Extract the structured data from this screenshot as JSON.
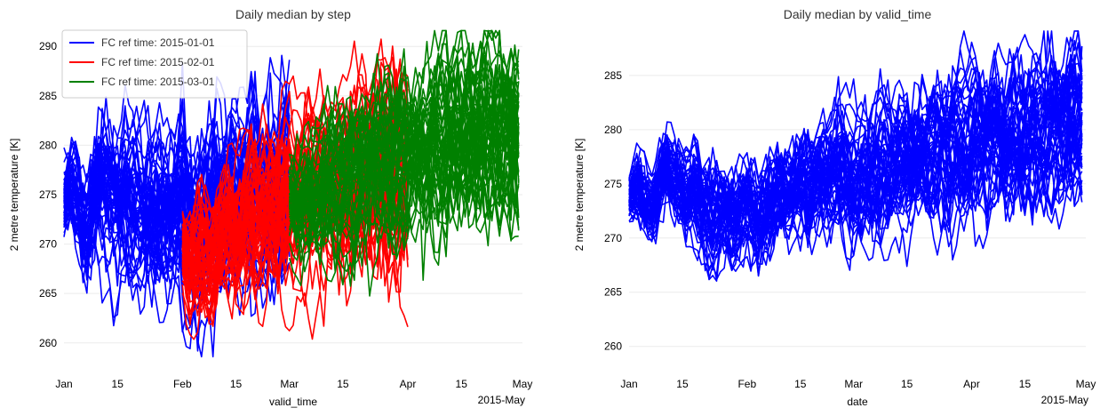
{
  "chart_data": [
    {
      "type": "line",
      "title": "Daily median by step",
      "xlabel": "valid_time",
      "ylabel": "2 metre temperature [K]",
      "x_offset_label": "2015-May",
      "xlim": [
        "2015-01-01",
        "2015-05-01"
      ],
      "ylim": [
        258,
        292
      ],
      "y_ticks": [
        260,
        265,
        270,
        275,
        280,
        285,
        290
      ],
      "x_ticks": [
        {
          "date": "2015-01-01",
          "label": "Jan"
        },
        {
          "date": "2015-01-15",
          "label": "15"
        },
        {
          "date": "2015-02-01",
          "label": "Feb"
        },
        {
          "date": "2015-02-15",
          "label": "15"
        },
        {
          "date": "2015-03-01",
          "label": "Mar"
        },
        {
          "date": "2015-03-15",
          "label": "15"
        },
        {
          "date": "2015-04-01",
          "label": "Apr"
        },
        {
          "date": "2015-04-15",
          "label": "15"
        },
        {
          "date": "2015-05-01",
          "label": "May"
        }
      ],
      "grid": "horizontal",
      "legend_position": "top-left",
      "series": [
        {
          "name": "FC ref time: 2015-01-01",
          "color": "#0000ff",
          "start": "2015-01-01",
          "days": 60,
          "members": 50,
          "median": [
            274.5,
            275.5,
            276,
            275,
            273.5,
            272,
            271,
            272.5,
            274.5,
            276,
            276.5,
            276,
            275,
            274.5,
            274,
            274.5,
            275,
            274.5,
            273.5,
            273,
            272.5,
            272.5,
            273,
            273.5,
            274,
            274,
            273.5,
            273,
            273,
            273.5,
            274,
            274.5,
            274,
            273,
            272.5,
            272,
            272.5,
            273,
            273.5,
            274,
            274.5,
            274,
            273.5,
            273.5,
            274,
            274.5,
            274.5,
            274,
            274,
            274.5,
            275,
            275,
            274.5,
            274.5,
            275,
            275.5,
            275.5,
            275,
            275.5,
            276
          ]
        },
        {
          "name": "FC ref time: 2015-02-01",
          "color": "#ff0000",
          "start": "2015-02-01",
          "days": 60,
          "members": 50,
          "median": [
            269.5,
            268.5,
            268,
            268.5,
            269,
            269.5,
            269,
            268.5,
            269,
            270,
            271,
            272,
            272.5,
            272,
            271.5,
            272,
            273,
            274,
            274.5,
            274,
            273.5,
            274,
            275,
            275.5,
            275,
            274.5,
            275,
            275.5,
            275.5,
            275,
            275,
            275.5,
            276,
            276,
            275.5,
            275.5,
            276,
            276.5,
            276,
            275.5,
            276,
            276.5,
            277,
            276.5,
            276,
            276.5,
            277,
            277,
            276.5,
            276.5,
            277,
            277.5,
            277,
            276.5,
            277,
            277.5,
            278,
            277.5,
            277.5,
            278
          ]
        },
        {
          "name": "FC ref time: 2015-03-01",
          "color": "#008000",
          "start": "2015-03-01",
          "days": 61,
          "members": 50,
          "median": [
            274.5,
            274,
            273.5,
            274,
            274.5,
            275,
            275.5,
            275,
            275,
            275.5,
            276,
            276.5,
            276,
            276,
            276.5,
            277,
            277,
            276.5,
            277,
            277.5,
            278,
            277.5,
            277.5,
            278,
            278.5,
            278.5,
            278,
            278,
            278.5,
            279,
            279,
            278.5,
            279,
            279.5,
            279.5,
            279,
            279,
            279.5,
            280,
            280,
            279.5,
            280,
            280.5,
            280.5,
            280,
            280,
            280.5,
            281,
            281,
            280.5,
            281,
            281.5,
            281.5,
            281,
            281,
            281.5,
            282,
            282,
            281.5,
            282,
            282.5
          ]
        }
      ]
    },
    {
      "type": "line",
      "title": "Daily median by valid_time",
      "xlabel": "date",
      "ylabel": "2 metre temperature [K]",
      "x_offset_label": "2015-May",
      "xlim": [
        "2015-01-01",
        "2015-05-01"
      ],
      "ylim": [
        258.5,
        289.5
      ],
      "y_ticks": [
        260,
        265,
        270,
        275,
        280,
        285
      ],
      "x_ticks": [
        {
          "date": "2015-01-01",
          "label": "Jan"
        },
        {
          "date": "2015-01-15",
          "label": "15"
        },
        {
          "date": "2015-02-01",
          "label": "Feb"
        },
        {
          "date": "2015-02-15",
          "label": "15"
        },
        {
          "date": "2015-03-01",
          "label": "Mar"
        },
        {
          "date": "2015-03-15",
          "label": "15"
        },
        {
          "date": "2015-04-01",
          "label": "Apr"
        },
        {
          "date": "2015-04-15",
          "label": "15"
        },
        {
          "date": "2015-05-01",
          "label": "May"
        }
      ],
      "grid": "horizontal",
      "series": [
        {
          "color": "#0000ff",
          "start": "2015-01-01",
          "days": 120,
          "members": 50,
          "median": [
            273.5,
            274,
            274.5,
            274,
            273.5,
            273,
            272.5,
            273.5,
            275,
            276,
            276.5,
            276,
            275.5,
            275,
            274.5,
            274,
            274.5,
            275,
            274.5,
            273.5,
            273,
            272.5,
            272,
            272.5,
            273,
            273.5,
            273,
            272.5,
            272,
            272.5,
            273,
            273,
            272.5,
            272,
            271.5,
            272,
            272.5,
            273,
            273.5,
            274,
            274,
            273.5,
            273.5,
            274,
            274.5,
            275,
            275,
            274.5,
            274.5,
            275,
            275.5,
            275.5,
            275,
            275,
            275.5,
            276,
            276,
            275.5,
            275,
            275,
            275.5,
            276,
            276,
            275.5,
            275.5,
            276,
            276.5,
            276.5,
            276,
            276,
            276.5,
            277,
            277,
            276.5,
            276.5,
            277,
            277.5,
            277.5,
            277,
            277,
            277.5,
            278,
            278,
            277.5,
            277.5,
            278,
            278.5,
            278.5,
            278,
            278,
            278.5,
            279,
            279,
            278.5,
            278.5,
            279,
            279.5,
            279.5,
            279,
            279,
            279.5,
            280,
            280,
            279.5,
            279.5,
            280,
            280.5,
            280.5,
            280,
            280,
            280.5,
            281,
            281,
            280.5,
            280.5,
            281,
            281.5,
            281.5,
            281,
            281
          ]
        }
      ]
    }
  ]
}
